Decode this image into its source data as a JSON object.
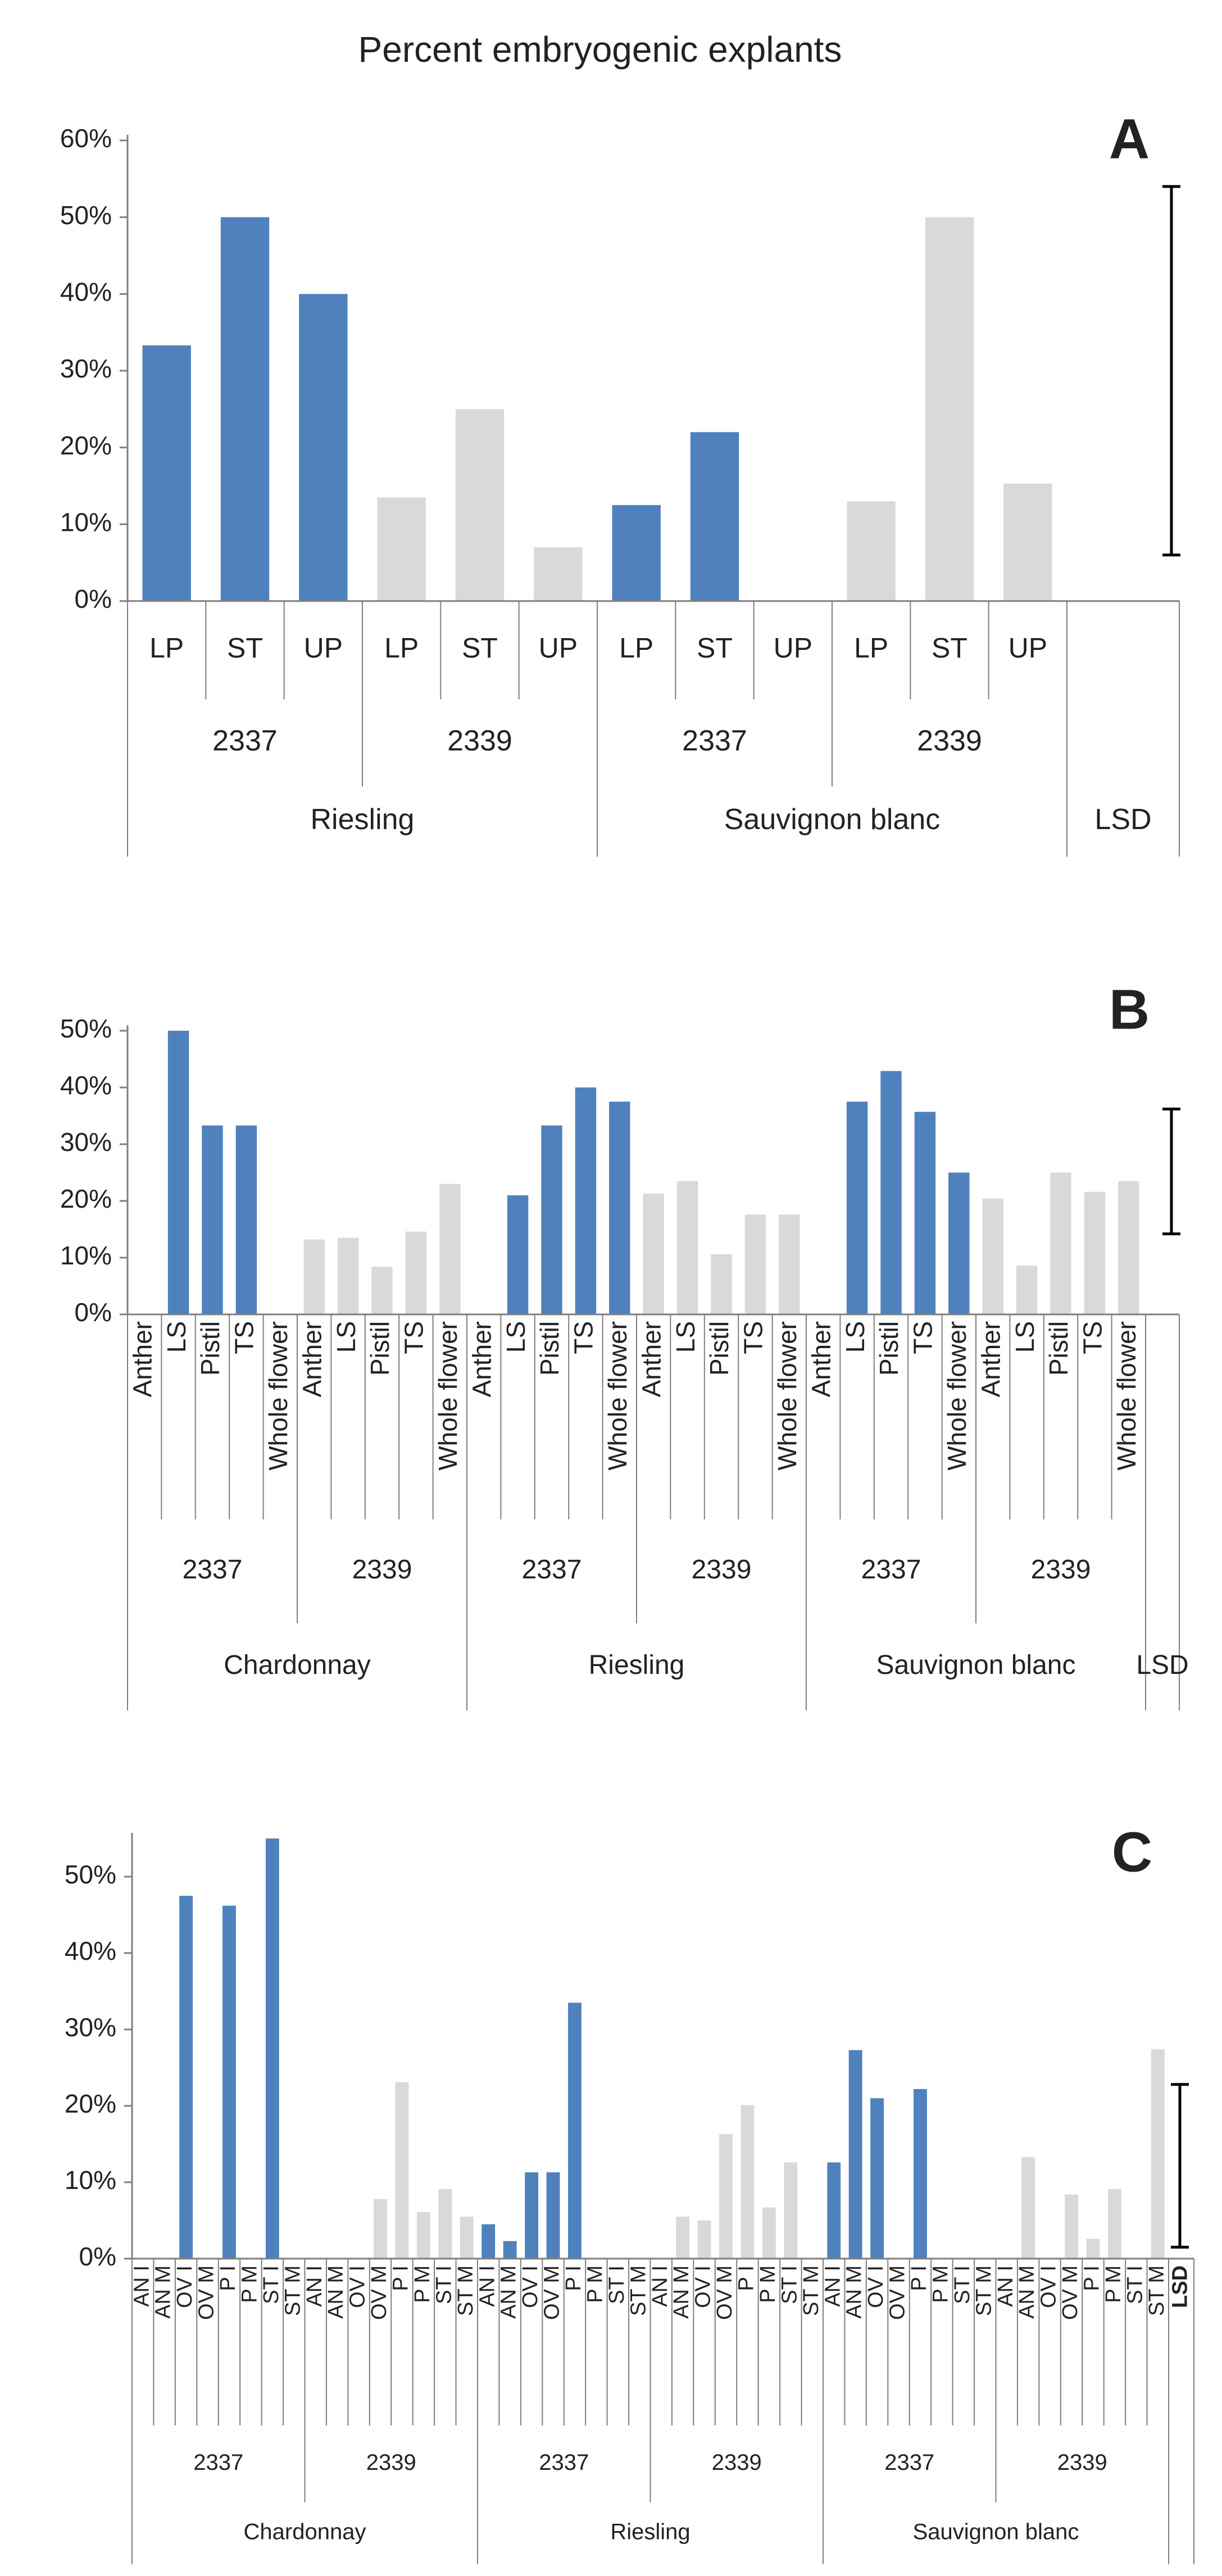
{
  "figure_title": "Percent embryogenic explants",
  "colors": {
    "blue": "#4f81bd",
    "gray": "#d9d9d9",
    "axis": "#7f7f7f",
    "text": "#222222"
  },
  "chart_data": [
    {
      "panel": "A",
      "type": "bar",
      "yticks": [
        "0%",
        "10%",
        "20%",
        "30%",
        "40%",
        "50%",
        "60%"
      ],
      "ylim": [
        0,
        60
      ],
      "categories": [
        "LP",
        "ST",
        "UP",
        "LP",
        "ST",
        "UP",
        "LP",
        "ST",
        "UP",
        "LP",
        "ST",
        "UP"
      ],
      "values": [
        33.3,
        50,
        40,
        13.5,
        25,
        7,
        12.5,
        22,
        0,
        13,
        50,
        15.3
      ],
      "bar_colors": [
        "blue",
        "blue",
        "blue",
        "gray",
        "gray",
        "gray",
        "blue",
        "blue",
        "blue",
        "gray",
        "gray",
        "gray"
      ],
      "genotypes": [
        {
          "label": "2337",
          "span": 3
        },
        {
          "label": "2339",
          "span": 3
        },
        {
          "label": "2337",
          "span": 3
        },
        {
          "label": "2339",
          "span": 3
        }
      ],
      "cultivars": [
        {
          "label": "Riesling",
          "span": 6
        },
        {
          "label": "Sauvignon blanc",
          "span": 6
        }
      ],
      "lsd": {
        "label": "LSD",
        "low": 6,
        "high": 54
      }
    },
    {
      "panel": "B",
      "type": "bar",
      "yticks": [
        "0%",
        "10%",
        "20%",
        "30%",
        "40%",
        "50%"
      ],
      "ylim": [
        0,
        50
      ],
      "categories": [
        "Anther",
        "LS",
        "Pistil",
        "TS",
        "Whole flower",
        "Anther",
        "LS",
        "Pistil",
        "TS",
        "Whole flower",
        "Anther",
        "LS",
        "Pistil",
        "TS",
        "Whole flower",
        "Anther",
        "LS",
        "Pistil",
        "TS",
        "Whole flower",
        "Anther",
        "LS",
        "Pistil",
        "TS",
        "Whole flower",
        "Anther",
        "LS",
        "Pistil",
        "TS",
        "Whole flower"
      ],
      "values": [
        0,
        50,
        33.3,
        33.3,
        0,
        13.2,
        13.5,
        8.4,
        14.6,
        23,
        0,
        21,
        33.3,
        40,
        37.5,
        21.3,
        23.5,
        10.6,
        17.6,
        17.6,
        0,
        37.5,
        42.9,
        35.7,
        25,
        20.4,
        8.6,
        25,
        21.6,
        23.5
      ],
      "bar_colors": [
        "blue",
        "blue",
        "blue",
        "blue",
        "blue",
        "gray",
        "gray",
        "gray",
        "gray",
        "gray",
        "blue",
        "blue",
        "blue",
        "blue",
        "blue",
        "gray",
        "gray",
        "gray",
        "gray",
        "gray",
        "blue",
        "blue",
        "blue",
        "blue",
        "blue",
        "gray",
        "gray",
        "gray",
        "gray",
        "gray"
      ],
      "genotypes": [
        {
          "label": "2337",
          "span": 5
        },
        {
          "label": "2339",
          "span": 5
        },
        {
          "label": "2337",
          "span": 5
        },
        {
          "label": "2339",
          "span": 5
        },
        {
          "label": "2337",
          "span": 5
        },
        {
          "label": "2339",
          "span": 5
        }
      ],
      "cultivars": [
        {
          "label": "Chardonnay",
          "span": 10
        },
        {
          "label": "Riesling",
          "span": 10
        },
        {
          "label": "Sauvignon blanc",
          "span": 10
        }
      ],
      "lsd": {
        "label": "LSD",
        "low": 14.2,
        "high": 36.2
      }
    },
    {
      "panel": "C",
      "type": "bar",
      "yticks": [
        "0%",
        "10%",
        "20%",
        "30%",
        "40%",
        "50%"
      ],
      "ylim": [
        0,
        55
      ],
      "categories": [
        "AN I",
        "AN M",
        "OV I",
        "OV M",
        "P I",
        "P M",
        "ST I",
        "ST M",
        "AN I",
        "AN M",
        "OV I",
        "OV M",
        "P I",
        "P M",
        "ST I",
        "ST M",
        "AN I",
        "AN M",
        "OV I",
        "OV M",
        "P I",
        "P M",
        "ST I",
        "ST M",
        "AN I",
        "AN M",
        "OV I",
        "OV M",
        "P I",
        "P M",
        "ST I",
        "ST M",
        "AN I",
        "AN M",
        "OV I",
        "OV M",
        "P I",
        "P M",
        "ST I",
        "ST M",
        "AN I",
        "AN M",
        "OV I",
        "OV M",
        "P I",
        "P M",
        "ST I",
        "ST M"
      ],
      "values": [
        0,
        0,
        47.5,
        0,
        46.2,
        0,
        55,
        0,
        0,
        0,
        0,
        7.8,
        23.1,
        6.1,
        9.1,
        5.5,
        4.5,
        2.3,
        11.3,
        11.3,
        33.5,
        0,
        0,
        0,
        0,
        5.5,
        5,
        16.3,
        20.1,
        6.7,
        12.6,
        0,
        12.6,
        27.3,
        21,
        0,
        22.2,
        0,
        0,
        0,
        0,
        13.3,
        0,
        8.4,
        2.6,
        9.1,
        0,
        27.4
      ],
      "bar_colors": [
        "blue",
        "blue",
        "blue",
        "blue",
        "blue",
        "blue",
        "blue",
        "blue",
        "gray",
        "gray",
        "gray",
        "gray",
        "gray",
        "gray",
        "gray",
        "gray",
        "blue",
        "blue",
        "blue",
        "blue",
        "blue",
        "blue",
        "blue",
        "blue",
        "gray",
        "gray",
        "gray",
        "gray",
        "gray",
        "gray",
        "gray",
        "gray",
        "blue",
        "blue",
        "blue",
        "blue",
        "blue",
        "blue",
        "blue",
        "blue",
        "gray",
        "gray",
        "gray",
        "gray",
        "gray",
        "gray",
        "gray",
        "gray"
      ],
      "genotypes": [
        {
          "label": "2337",
          "span": 8
        },
        {
          "label": "2339",
          "span": 8
        },
        {
          "label": "2337",
          "span": 8
        },
        {
          "label": "2339",
          "span": 8
        },
        {
          "label": "2337",
          "span": 8
        },
        {
          "label": "2339",
          "span": 8
        }
      ],
      "cultivars": [
        {
          "label": "Chardonnay",
          "span": 16
        },
        {
          "label": "Riesling",
          "span": 16
        },
        {
          "label": "Sauvignon blanc",
          "span": 16
        }
      ],
      "lsd": {
        "label": "LSD",
        "low": 1.5,
        "high": 22.8
      }
    }
  ]
}
